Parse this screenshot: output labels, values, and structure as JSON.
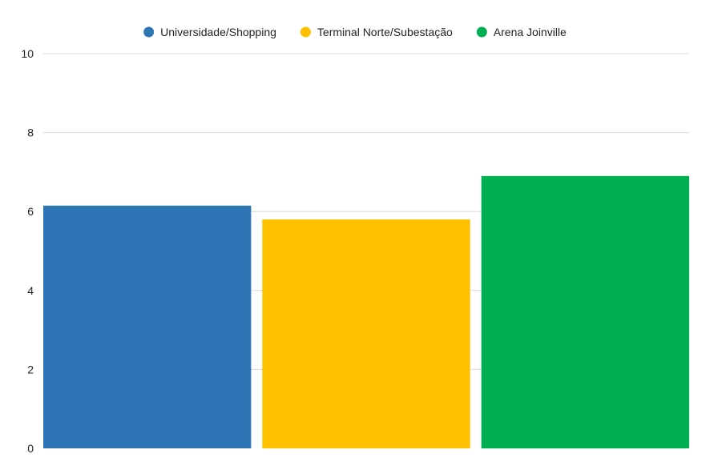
{
  "chart_data": {
    "type": "bar",
    "title": "",
    "xlabel": "",
    "ylabel": "",
    "ylim": [
      0,
      10
    ],
    "yticks": [
      0,
      2,
      4,
      6,
      8,
      10
    ],
    "grid": true,
    "legend_position": "top-center",
    "series": [
      {
        "name": "Universidade/Shopping",
        "value": 6.15,
        "color": "#2e75b6"
      },
      {
        "name": "Terminal Norte/Subestação",
        "value": 5.8,
        "color": "#ffc000"
      },
      {
        "name": "Arena Joinville",
        "value": 6.9,
        "color": "#00b050"
      }
    ]
  }
}
